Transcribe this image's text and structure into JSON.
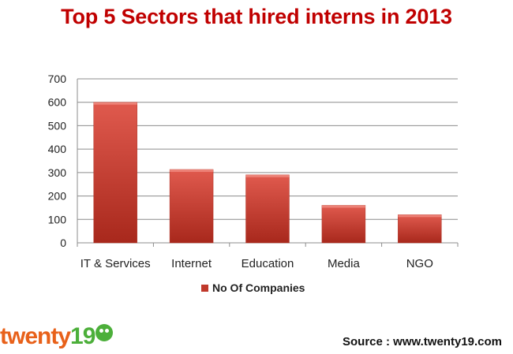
{
  "chart_data": {
    "type": "bar",
    "title": "Top 5 Sectors that hired interns in 2013",
    "categories": [
      "IT & Services",
      "Internet",
      "Education",
      "Media",
      "NGO"
    ],
    "series": [
      {
        "name": "No Of Companies",
        "values": [
          600,
          313,
          290,
          160,
          120
        ]
      }
    ],
    "ylim": [
      0,
      700
    ],
    "yticks": [
      0,
      100,
      200,
      300,
      400,
      500,
      600,
      700
    ],
    "grid": true,
    "legend": "bottom",
    "colors": {
      "bar": "#c0392b",
      "title": "#c00000"
    }
  },
  "logo": {
    "word": "twenty",
    "number": "19"
  },
  "source": "Source : www.twenty19.com"
}
